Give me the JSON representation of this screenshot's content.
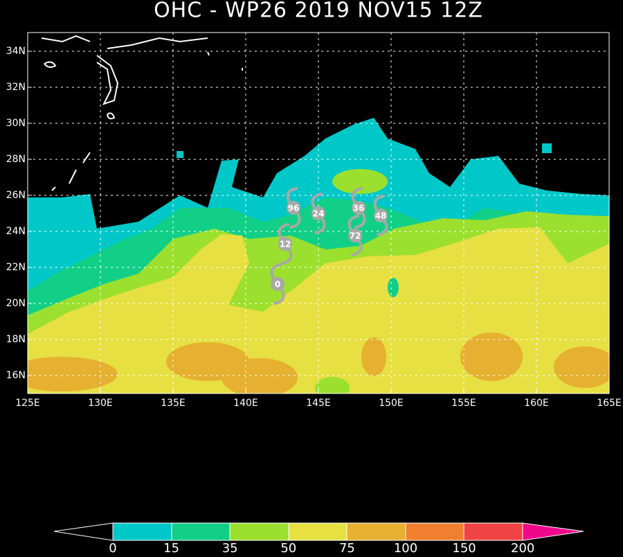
{
  "header": {
    "title": "OHC - WP26 2019 NOV15 12Z"
  },
  "map": {
    "lat_labels": [
      "16N",
      "18N",
      "20N",
      "22N",
      "24N",
      "26N",
      "28N",
      "30N",
      "32N",
      "34N"
    ],
    "lon_labels": [
      "125E",
      "130E",
      "135E",
      "140E",
      "145E",
      "150E",
      "155E",
      "160E",
      "165E"
    ]
  },
  "track": {
    "points": [
      {
        "label": "0"
      },
      {
        "label": "12"
      },
      {
        "label": "24"
      },
      {
        "label": "36"
      },
      {
        "label": "48"
      },
      {
        "label": "72"
      },
      {
        "label": "96"
      }
    ]
  },
  "colorbar": {
    "labels": [
      "0",
      "15",
      "35",
      "50",
      "75",
      "100",
      "150",
      "200"
    ]
  }
}
